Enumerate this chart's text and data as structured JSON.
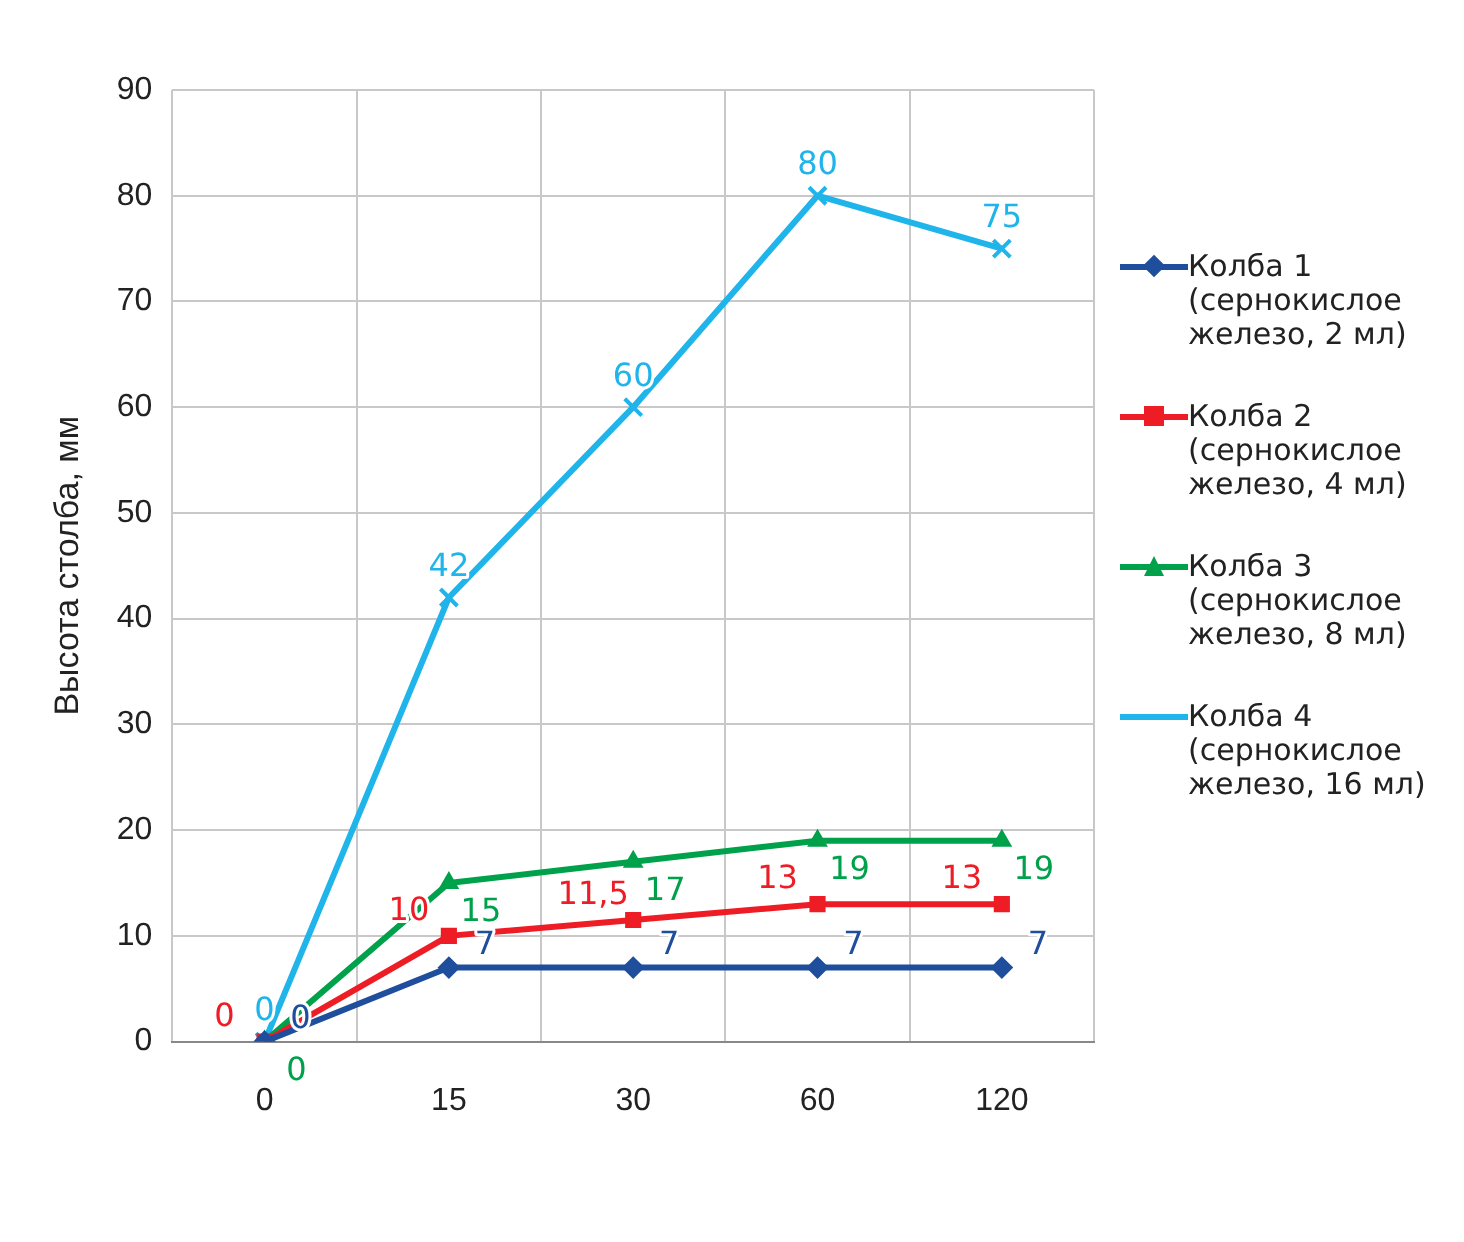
{
  "chart_data": {
    "type": "line",
    "ylabel": "Высота столба, мм",
    "categories": [
      "0",
      "15",
      "30",
      "60",
      "120"
    ],
    "ylim": [
      0,
      90
    ],
    "yticks": [
      0,
      10,
      20,
      30,
      40,
      50,
      60,
      70,
      80,
      90
    ],
    "grid": true,
    "legend": "right",
    "data_labels": true,
    "line_style": "solid",
    "series": [
      {
        "name": "Колба 1 (сернокислое железо, 2 мл)",
        "color": "#1f4e9c",
        "marker": "diamond",
        "values": [
          0,
          7,
          7,
          7,
          7
        ]
      },
      {
        "name": "Колба 2 (сернокислое железо, 4 мл)",
        "color": "#ee1c25",
        "marker": "square",
        "values": [
          0,
          10,
          11.5,
          13,
          13
        ],
        "value_labels": [
          "0",
          "10",
          "11,5",
          "13",
          "13"
        ]
      },
      {
        "name": "Колба 3 (сернокислое железо, 8 мл)",
        "color": "#00a14b",
        "marker": "triangle",
        "values": [
          0,
          15,
          17,
          19,
          19
        ]
      },
      {
        "name": "Колба 4 (сернокислое железо, 16 мл)",
        "color": "#1fb4ea",
        "marker": "cross",
        "values": [
          0,
          42,
          60,
          80,
          75
        ]
      }
    ]
  }
}
